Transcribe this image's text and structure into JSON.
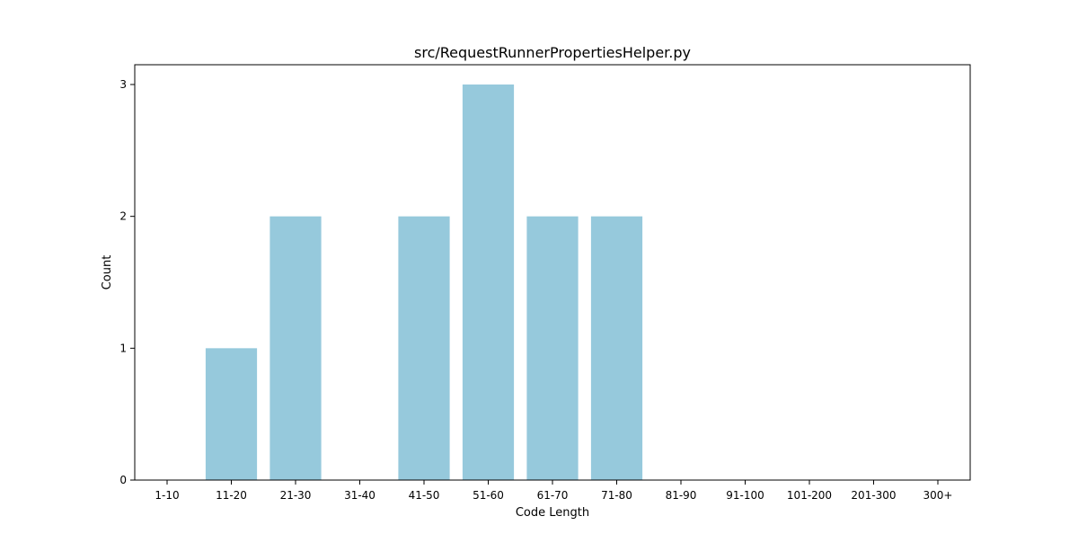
{
  "chart_data": {
    "type": "bar",
    "title": "src/RequestRunnerPropertiesHelper.py",
    "xlabel": "Code Length",
    "ylabel": "Count",
    "categories": [
      "1-10",
      "11-20",
      "21-30",
      "31-40",
      "41-50",
      "51-60",
      "61-70",
      "71-80",
      "81-90",
      "91-100",
      "101-200",
      "201-300",
      "300+"
    ],
    "values": [
      0,
      1,
      2,
      0,
      2,
      3,
      2,
      2,
      0,
      0,
      0,
      0,
      0
    ],
    "ylim": [
      0,
      3.15
    ],
    "yticks": [
      0,
      1,
      2,
      3
    ],
    "grid": false,
    "bar_color": "#96c9dc"
  }
}
